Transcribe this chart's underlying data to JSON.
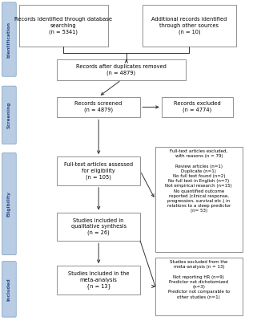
{
  "sidebar_labels": [
    "Identification",
    "Screening",
    "Eligibility",
    "Included"
  ],
  "sidebar_color": "#b8cce4",
  "sidebar_border_color": "#7f9fbf",
  "box_fill": "#ffffff",
  "box_edge": "#808080",
  "box1_text": "Records identified through database\nsearching\n(n = 5341)",
  "box2_text": "Additional records identified\nthrough other sources\n(n = 10)",
  "box3_text": "Records after duplicates removed\n(n = 4879)",
  "box4_text": "Records screened\n(n = 4879)",
  "box5_text": "Records excluded\n(n = 4774)",
  "box6_text": "Full-text articles assessed\nfor eligibility\n(n = 105)",
  "box7_text": "Full-text articles excluded,\nwith reasons (n = 79)\n\nReview articles (n=1)\nDuplicate (n=1)\nNo full text found (n=2)\nNo full text in English (n=7)\nNot empirical research (n=15)\nNo quantified outcome\nreported (clinical response,\nprogression, survival etc.) in\nrelations to a sleep predictor\n(n= 53)",
  "box8_text": "Studies included in\nqualitative synthesis\n(n = 26)",
  "box9_text": "Studies included in the\nmeta-analysis\n{n = 13}",
  "box10_text": "Studies excluded from the\nmeta-analysis (n = 13)\n\nNot reporting HR (n=9)\nPredictor not dichotomized\n(n=3)\nPredictor not comparable to\nother studies (n=1)",
  "arrow_color": "#333333",
  "text_color": "#000000",
  "bg_color": "#ffffff"
}
